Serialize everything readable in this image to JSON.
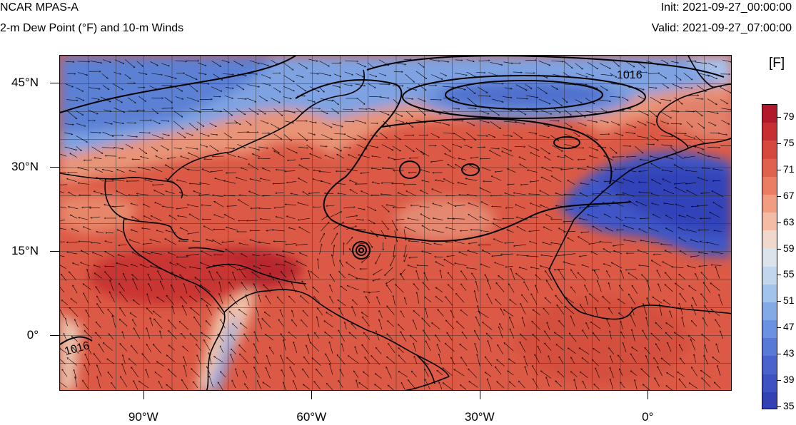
{
  "header": {
    "title_left": "NCAR MPAS-A",
    "subtitle_left": "2-m Dew Point (°F) and 10-m Winds",
    "init": "Init: 2021-09-27_00:00:00",
    "valid": "Valid: 2021-09-27_07:00:00"
  },
  "map": {
    "lon_range": [
      -105,
      15
    ],
    "lat_range": [
      -10,
      50
    ],
    "lat_labels": [
      {
        "lat": 45,
        "text": "45°N"
      },
      {
        "lat": 30,
        "text": "30°N"
      },
      {
        "lat": 15,
        "text": "15°N"
      },
      {
        "lat": 0,
        "text": "0°"
      }
    ],
    "lon_labels": [
      {
        "lon": -90,
        "text": "90°W"
      },
      {
        "lon": -60,
        "text": "60°W"
      },
      {
        "lon": -30,
        "text": "30°W"
      },
      {
        "lon": 0,
        "text": "0°"
      }
    ],
    "gridlines": true,
    "isobar_label": "1016",
    "isobar_label_2": "1016",
    "colors": {
      "ocean_warm": "#d9513f",
      "land_cool": "#5a7fd4",
      "sahara": "#3f58c7",
      "coast": "#000000"
    }
  },
  "colorbar": {
    "title": "[F]",
    "labels": [
      "79",
      "75",
      "71",
      "67",
      "63",
      "59",
      "55",
      "51",
      "47",
      "43",
      "39",
      "35"
    ],
    "colors": [
      "#b2182b",
      "#c62e32",
      "#d6473d",
      "#e0614c",
      "#ea7d62",
      "#f29c82",
      "#f5bca5",
      "#f0d9cc",
      "#dde3ea",
      "#c2d7ee",
      "#a2c3ec",
      "#83aae6",
      "#6a92e0",
      "#5879d6",
      "#4a63cc",
      "#3e50c2",
      "#3441b5"
    ]
  }
}
